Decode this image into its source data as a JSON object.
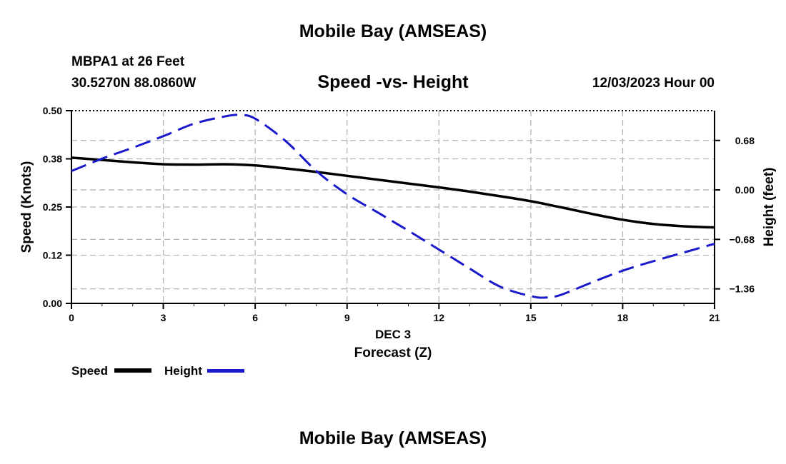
{
  "header": {
    "main_title": "Mobile Bay (AMSEAS)",
    "station": "MBPA1 at 26 Feet",
    "coords": "30.5270N  88.0860W",
    "chart_title": "Speed -vs- Height",
    "datetime": "12/03/2023 Hour 00"
  },
  "footer": {
    "repeat_title": "Mobile Bay (AMSEAS)"
  },
  "legend": {
    "speed_label": "Speed",
    "height_label": "Height"
  },
  "colors": {
    "speed": "#000000",
    "height": "#1a1acc",
    "grid": "#b4b4b4"
  },
  "chart_data": {
    "type": "line",
    "title": "Speed -vs- Height",
    "xlabel": "Forecast (Z)",
    "xsublabel": "DEC 3",
    "ylabel": "Speed (Knots)",
    "y2label": "Height (feet)",
    "xlim": [
      0,
      21
    ],
    "ylim": [
      0,
      0.5
    ],
    "y2lim": [
      -1.56,
      1.09
    ],
    "xticks": [
      0,
      3,
      6,
      9,
      12,
      15,
      18,
      21
    ],
    "xtick_labels": [
      "0",
      "3",
      "6",
      "9",
      "12",
      "15",
      "18",
      "21"
    ],
    "yticks": [
      0.0,
      0.125,
      0.25,
      0.375,
      0.5
    ],
    "ytick_labels": [
      "0.00",
      "0.12",
      "0.25",
      "0.38",
      "0.50"
    ],
    "y2ticks": [
      0.68,
      0.0,
      -0.68,
      -1.36
    ],
    "y2tick_labels": [
      "0.68",
      "0.00",
      "−0.68",
      "−1.36"
    ],
    "grid": true,
    "series": [
      {
        "name": "Speed",
        "axis": "left",
        "style": "solid",
        "x": [
          0,
          1,
          2,
          3,
          4,
          5,
          6,
          7,
          8,
          9,
          10,
          11,
          12,
          13,
          14,
          15,
          16,
          17,
          18,
          19,
          20,
          21
        ],
        "values": [
          0.378,
          0.372,
          0.366,
          0.361,
          0.36,
          0.361,
          0.358,
          0.35,
          0.341,
          0.331,
          0.321,
          0.311,
          0.301,
          0.29,
          0.278,
          0.265,
          0.249,
          0.232,
          0.217,
          0.206,
          0.2,
          0.197
        ]
      },
      {
        "name": "Height",
        "axis": "right",
        "style": "dashed",
        "x": [
          0,
          1,
          2,
          3,
          4,
          5,
          5.5,
          6,
          7,
          8,
          9,
          10,
          11,
          12,
          13,
          14,
          15,
          15.5,
          16,
          17,
          18,
          19,
          20,
          21
        ],
        "values": [
          0.26,
          0.43,
          0.58,
          0.74,
          0.91,
          1.01,
          1.03,
          0.98,
          0.67,
          0.26,
          -0.06,
          -0.31,
          -0.56,
          -0.82,
          -1.08,
          -1.33,
          -1.46,
          -1.48,
          -1.44,
          -1.27,
          -1.11,
          -0.98,
          -0.86,
          -0.74
        ]
      }
    ]
  }
}
